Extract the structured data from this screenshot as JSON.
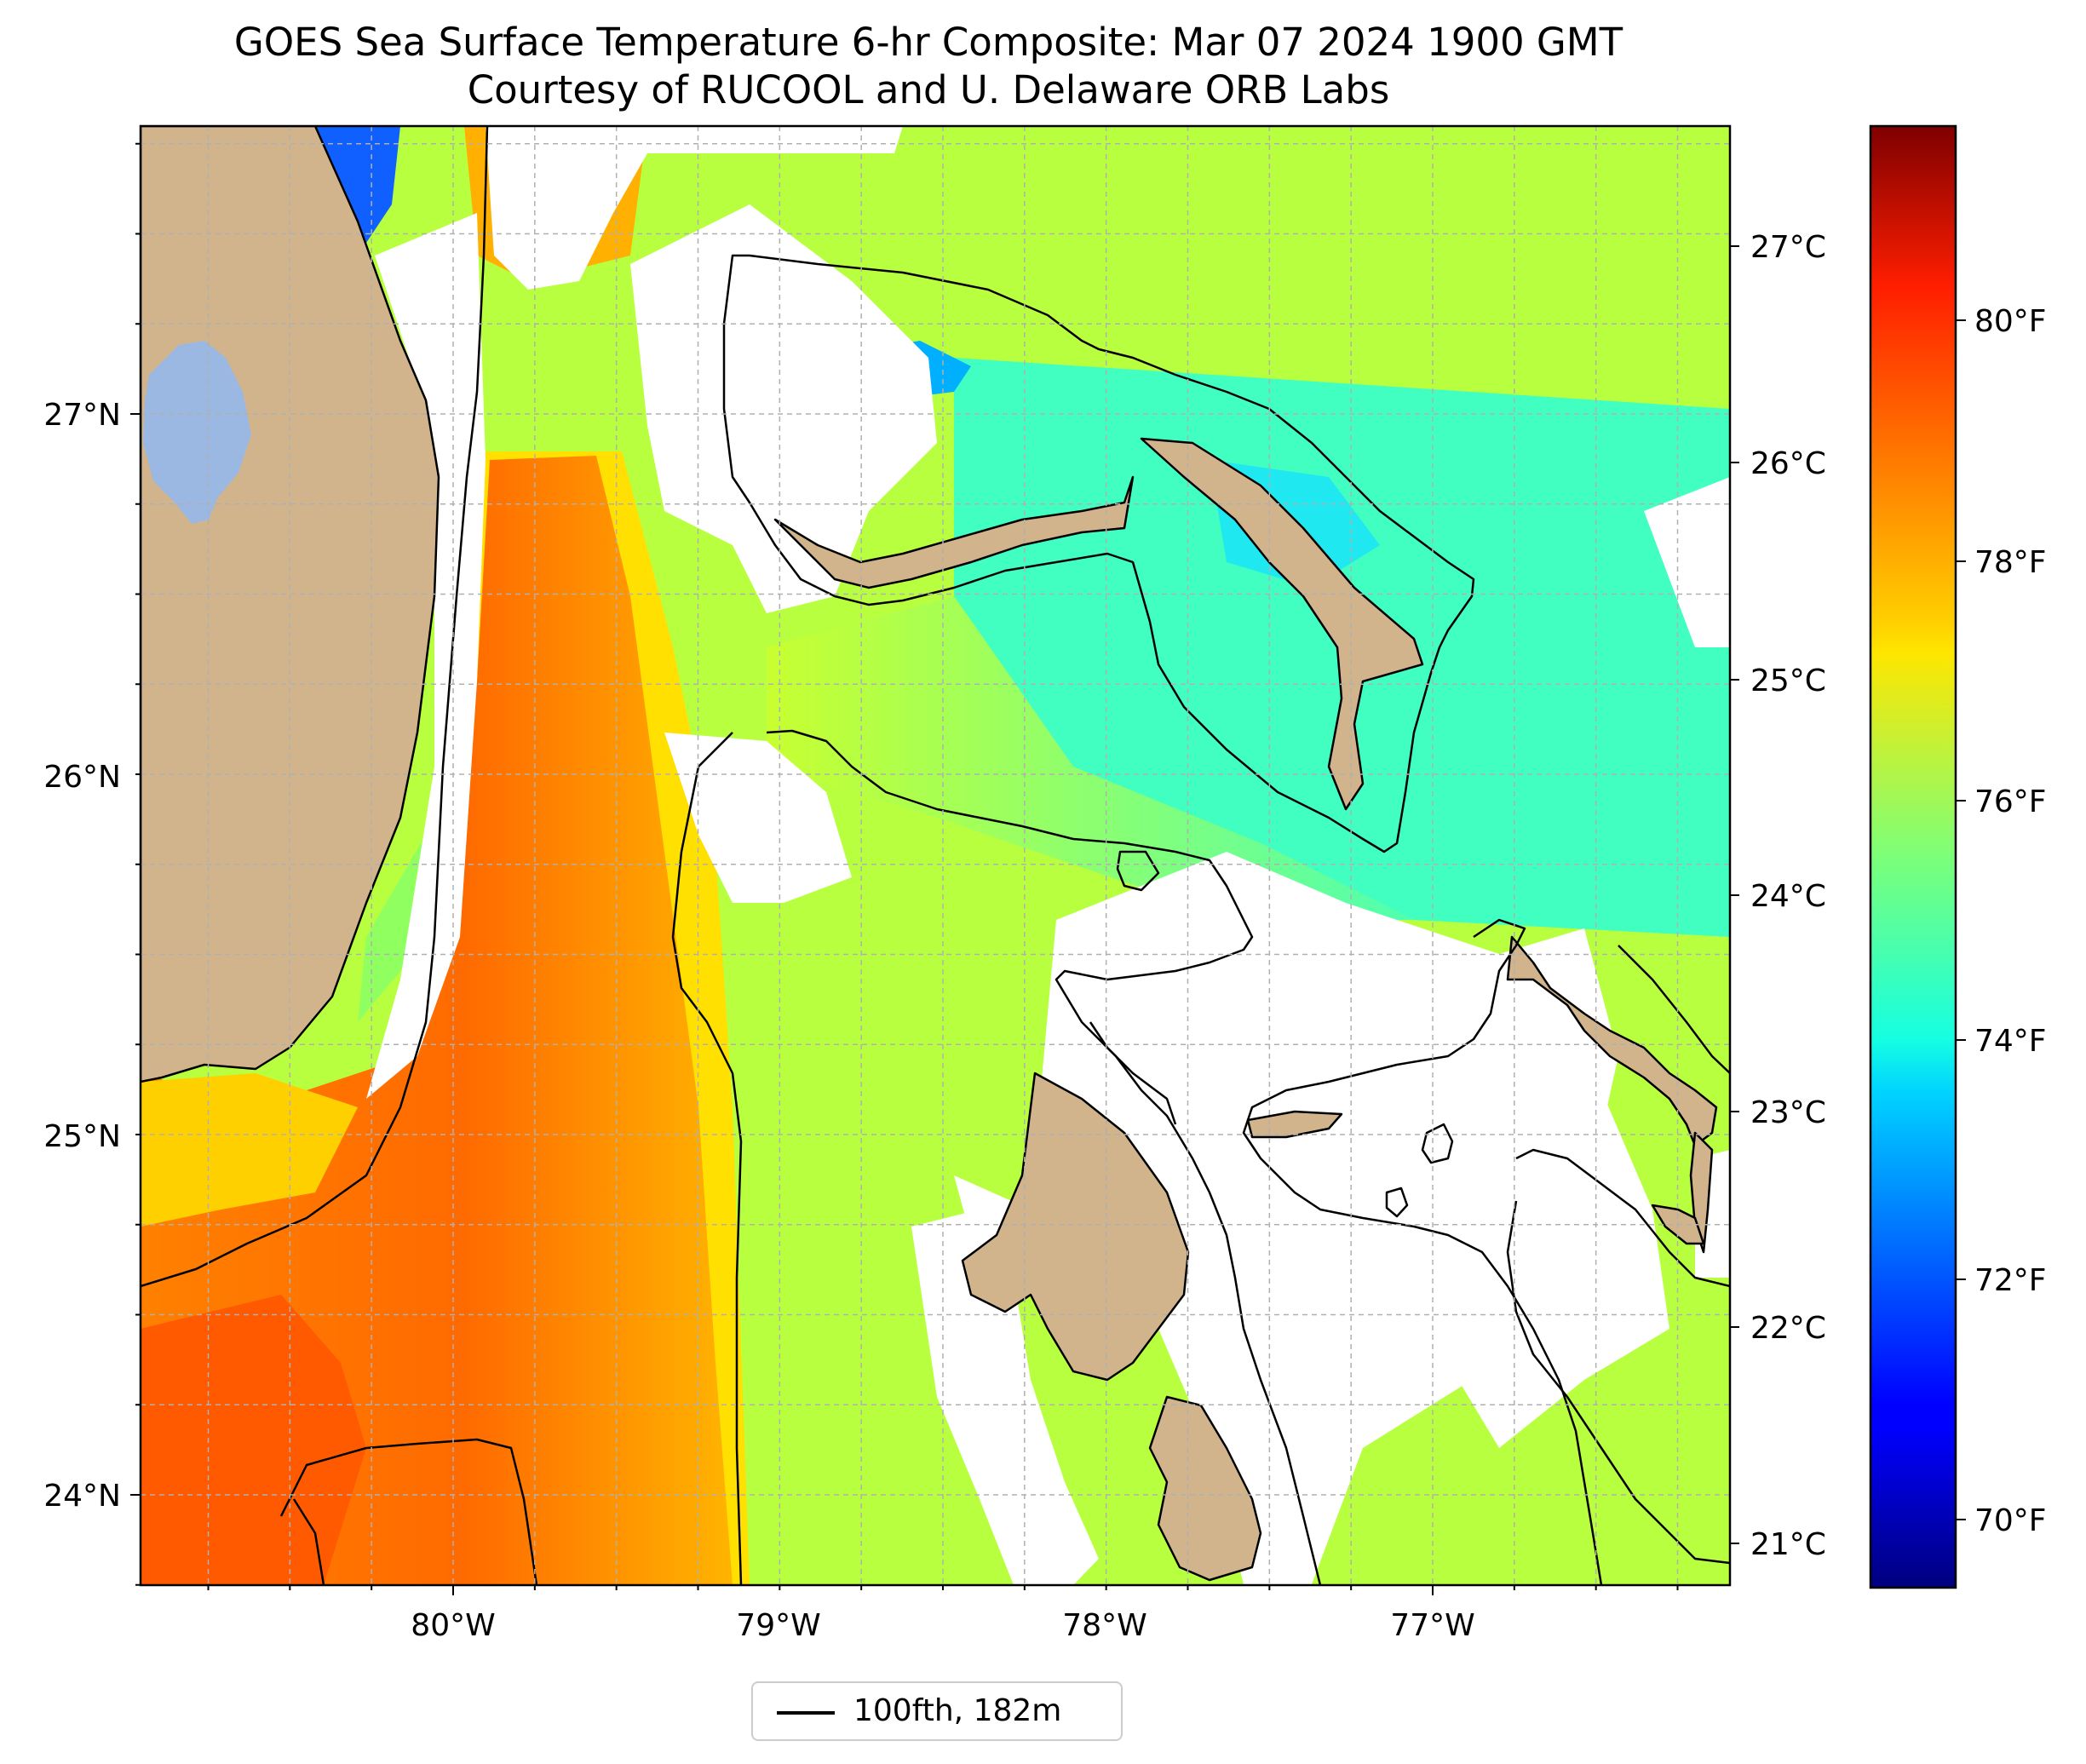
{
  "title": {
    "line1": "GOES Sea Surface Temperature 6-hr Composite: Mar 07 2024 1900 GMT",
    "line2": "Courtesy of RUCOOL and U. Delaware ORB Labs"
  },
  "map": {
    "lon_labels": [
      "80°W",
      "79°W",
      "78°W",
      "77°W"
    ],
    "lat_labels": [
      "27°N",
      "26°N",
      "25°N",
      "24°N"
    ],
    "gridlines": true,
    "colors": {
      "land": "#d2b48c",
      "lake": "#9ab8e2",
      "no_data": "#ffffff",
      "contour": "#000000"
    }
  },
  "colorbar": {
    "colormap": "jet",
    "celsius_ticks": [
      "27°C",
      "26°C",
      "25°C",
      "24°C",
      "23°C",
      "22°C",
      "21°C"
    ],
    "fahrenheit_ticks": [
      "80°F",
      "78°F",
      "76°F",
      "74°F",
      "72°F",
      "70°F"
    ],
    "range_celsius": [
      20.8,
      27.6
    ]
  },
  "legend": {
    "label": "100fth, 182m",
    "placement": "bottom-center"
  }
}
